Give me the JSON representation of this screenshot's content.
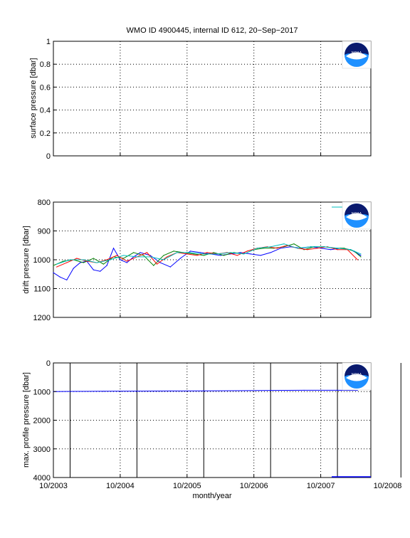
{
  "chart_data": [
    {
      "type": "line",
      "title": "WMO ID 4900445, internal ID 612, 20−Sep−2017",
      "ylabel": "surface pressure [dbar]",
      "ylim": [
        0,
        1
      ],
      "y_reversed": false,
      "yticks": [
        "0",
        "0.2",
        "0.4",
        "0.6",
        "0.8",
        "1"
      ],
      "grid": true,
      "series": []
    },
    {
      "type": "line",
      "ylabel": "drift pressure [dbar]",
      "ylim": [
        800,
        1200
      ],
      "y_reversed": true,
      "yticks": [
        "800",
        "900",
        "1000",
        "1100",
        "1200"
      ],
      "grid": true,
      "series_colors": [
        "#0000ff",
        "#008000",
        "#ff0000",
        "#00bfbf"
      ],
      "series": [
        {
          "x": [
            2003.75,
            2003.85,
            2003.95,
            2004.05,
            2004.15,
            2004.25,
            2004.35,
            2004.45,
            2004.55,
            2004.65,
            2004.75,
            2004.85,
            2004.95,
            2005.05,
            2005.2,
            2005.35,
            2005.5,
            2005.65,
            2005.8,
            2005.95,
            2006.1,
            2006.25,
            2006.4,
            2006.55,
            2006.7,
            2006.85,
            2007.0,
            2007.15,
            2007.3,
            2007.45,
            2007.6,
            2007.75,
            2007.9,
            2008.05,
            2008.2,
            2008.35
          ],
          "y": [
            1045,
            1060,
            1070,
            1030,
            1010,
            1005,
            1035,
            1040,
            1020,
            960,
            1000,
            1010,
            990,
            975,
            985,
            1010,
            1025,
            995,
            970,
            975,
            980,
            985,
            980,
            975,
            980,
            985,
            975,
            960,
            955,
            960,
            955,
            960,
            965,
            960,
            965,
            985
          ]
        },
        {
          "x": [
            2003.75,
            2003.9,
            2004.05,
            2004.2,
            2004.35,
            2004.5,
            2004.65,
            2004.8,
            2004.95,
            2005.1,
            2005.25,
            2005.4,
            2005.55,
            2005.7,
            2005.85,
            2006.0,
            2006.15,
            2006.3,
            2006.45,
            2006.6,
            2006.75,
            2006.9,
            2007.05,
            2007.2,
            2007.35,
            2007.5,
            2007.65,
            2007.8,
            2007.95,
            2008.1,
            2008.25,
            2008.35
          ],
          "y": [
            1020,
            1005,
            1000,
            1010,
            995,
            1015,
            990,
            995,
            975,
            985,
            1020,
            985,
            970,
            975,
            980,
            985,
            975,
            985,
            975,
            980,
            965,
            960,
            960,
            955,
            945,
            965,
            955,
            955,
            960,
            960,
            970,
            990
          ]
        },
        {
          "x": [
            2003.8,
            2003.95,
            2004.1,
            2004.25,
            2004.4,
            2004.55,
            2004.7,
            2004.85,
            2005.0,
            2005.15,
            2005.3,
            2005.45,
            2005.6,
            2005.75,
            2005.9,
            2006.05,
            2006.2,
            2006.35,
            2006.5,
            2006.65,
            2006.8,
            2006.95,
            2007.1,
            2007.25,
            2007.4,
            2007.55,
            2007.7,
            2007.85,
            2008.0,
            2008.15,
            2008.3
          ],
          "y": [
            1025,
            1010,
            995,
            1005,
            1010,
            1000,
            985,
            1005,
            990,
            975,
            1015,
            990,
            975,
            980,
            985,
            975,
            980,
            975,
            985,
            970,
            960,
            955,
            960,
            950,
            960,
            965,
            960,
            955,
            965,
            965,
            1000
          ]
        },
        {
          "x": [
            2003.8,
            2004.0,
            2004.2,
            2004.4,
            2004.6,
            2004.8,
            2005.0,
            2005.2,
            2005.4,
            2005.6,
            2005.8,
            2006.0,
            2006.2,
            2006.4,
            2006.6,
            2006.8,
            2007.0,
            2007.2,
            2007.4,
            2007.6,
            2007.8,
            2008.0,
            2008.2,
            2008.35
          ],
          "y": [
            1015,
            1000,
            1000,
            1010,
            1000,
            985,
            990,
            990,
            1000,
            975,
            975,
            980,
            980,
            975,
            980,
            960,
            955,
            945,
            960,
            955,
            955,
            960,
            965,
            980
          ]
        }
      ]
    },
    {
      "type": "line",
      "ylabel": "max. profile pressure [dbar]",
      "xlabel": "month/year",
      "ylim": [
        0,
        4000
      ],
      "y_reversed": true,
      "yticks": [
        "0",
        "1000",
        "2000",
        "3000",
        "4000"
      ],
      "xticks": [
        "10/2003",
        "10/2004",
        "10/2005",
        "10/2006",
        "10/2007",
        "10/2008"
      ],
      "grid": true,
      "series_colors": [
        "#0000ff",
        "#000000"
      ],
      "series": [
        {
          "x": [
            2003.75,
            2004.0,
            2004.5,
            2005.0,
            2005.5,
            2006.0,
            2006.5,
            2007.0,
            2007.5,
            2008.0,
            2008.3
          ],
          "y": [
            1000,
            995,
            990,
            985,
            980,
            975,
            970,
            960,
            955,
            955,
            960
          ]
        }
      ],
      "vlines": [
        2004.0,
        2005.0,
        2006.0,
        2007.0,
        2008.0,
        2008.95
      ]
    }
  ],
  "logo": {
    "text": "NOAA",
    "colors": {
      "navy": "#0a1a6e",
      "sky": "#1e90ff",
      "white": "#ffffff"
    }
  }
}
